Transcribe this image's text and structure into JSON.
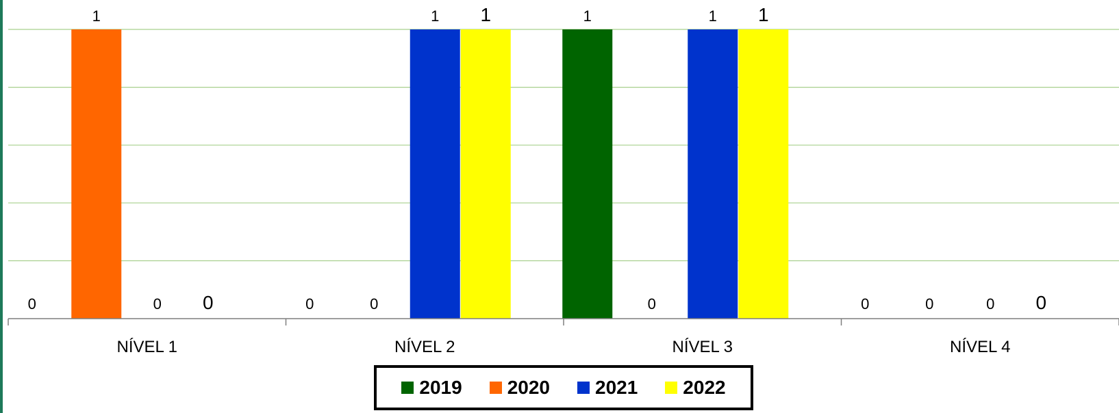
{
  "chart_data": {
    "type": "bar",
    "categories": [
      "NÍVEL 1",
      "NÍVEL 2",
      "NÍVEL 3",
      "NÍVEL 4"
    ],
    "series": [
      {
        "name": "2019",
        "values": [
          0,
          0,
          1,
          0
        ],
        "color": "#006400"
      },
      {
        "name": "2020",
        "values": [
          1,
          0,
          0,
          0
        ],
        "color": "#ff6600"
      },
      {
        "name": "2021",
        "values": [
          0,
          1,
          1,
          0
        ],
        "color": "#0033cc"
      },
      {
        "name": "2022",
        "values": [
          0,
          1,
          1,
          0
        ],
        "color": "#ffff00"
      }
    ],
    "ylim": [
      0,
      1
    ],
    "grid": true,
    "grid_color": "#a8d08d",
    "legend_position": "bottom",
    "title": "",
    "xlabel": "",
    "ylabel": ""
  }
}
